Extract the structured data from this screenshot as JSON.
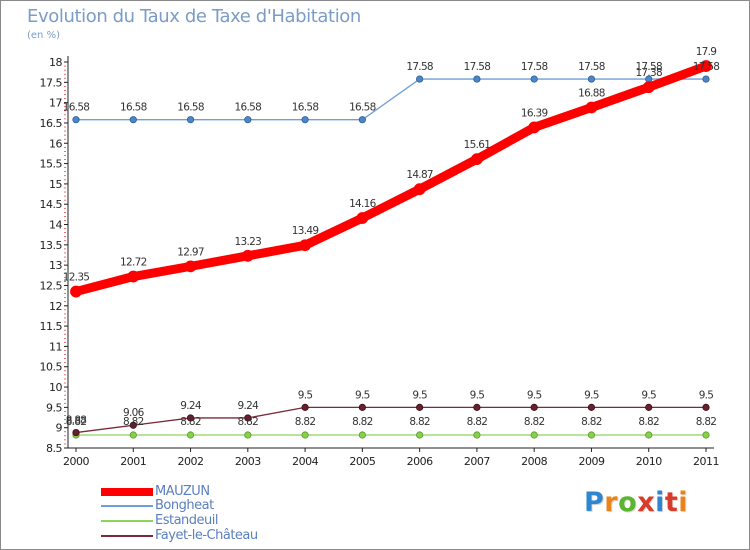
{
  "title": "Evolution du Taux de Taxe d'Habitation",
  "subtitle": "(en %)",
  "logo": "Proxiti",
  "chart_data": {
    "type": "line",
    "title": "Evolution du Taux de Taxe d'Habitation",
    "ylabel": "(en %)",
    "xlabel": "",
    "x": [
      2000,
      2001,
      2002,
      2003,
      2004,
      2005,
      2006,
      2007,
      2008,
      2009,
      2010,
      2011
    ],
    "ylim": [
      8.5,
      18
    ],
    "yticks": [
      "8.5",
      "9",
      "9.5",
      "10",
      "10.5",
      "11",
      "11.5",
      "12",
      "12.5",
      "13",
      "13.5",
      "14",
      "14.5",
      "15",
      "15.5",
      "16",
      "16.5",
      "17",
      "17.5",
      "18"
    ],
    "grid": false,
    "legend_position": "bottom-left",
    "series": [
      {
        "name": "MAUZUN",
        "color": "#ff0000",
        "values": [
          12.35,
          12.72,
          12.97,
          13.23,
          13.49,
          14.16,
          14.87,
          15.61,
          16.39,
          16.88,
          17.38,
          17.9
        ],
        "labels": [
          "12.35",
          "12.72",
          "12.97",
          "13.23",
          "13.49",
          "14.16",
          "14.87",
          "15.61",
          "16.39",
          "16.88",
          "17.38",
          "17.9"
        ]
      },
      {
        "name": "Bongheat",
        "color": "#6f9fd8",
        "values": [
          16.58,
          16.58,
          16.58,
          16.58,
          16.58,
          16.58,
          17.58,
          17.58,
          17.58,
          17.58,
          17.58,
          17.58
        ],
        "labels": [
          "16.58",
          "16.58",
          "16.58",
          "16.58",
          "16.58",
          "16.58",
          "17.58",
          "17.58",
          "17.58",
          "17.58",
          "17.58",
          "17.58"
        ]
      },
      {
        "name": "Estandeuil",
        "color": "#8fd45a",
        "values": [
          8.82,
          8.82,
          8.82,
          8.82,
          8.82,
          8.82,
          8.82,
          8.82,
          8.82,
          8.82,
          8.82,
          8.82
        ],
        "labels": [
          "8.82",
          "8.82",
          "8.82",
          "8.82",
          "8.82",
          "8.82",
          "8.82",
          "8.82",
          "8.82",
          "8.82",
          "8.82",
          "8.82"
        ]
      },
      {
        "name": "Fayet-le-Château",
        "color": "#7a2a3a",
        "values": [
          8.88,
          9.06,
          9.24,
          9.24,
          9.5,
          9.5,
          9.5,
          9.5,
          9.5,
          9.5,
          9.5,
          9.5
        ],
        "labels": [
          "8.88",
          "9.06",
          "9.24",
          "9.24",
          "9.5",
          "9.5",
          "9.5",
          "9.5",
          "9.5",
          "9.5",
          "9.5",
          "9.5"
        ]
      }
    ]
  }
}
